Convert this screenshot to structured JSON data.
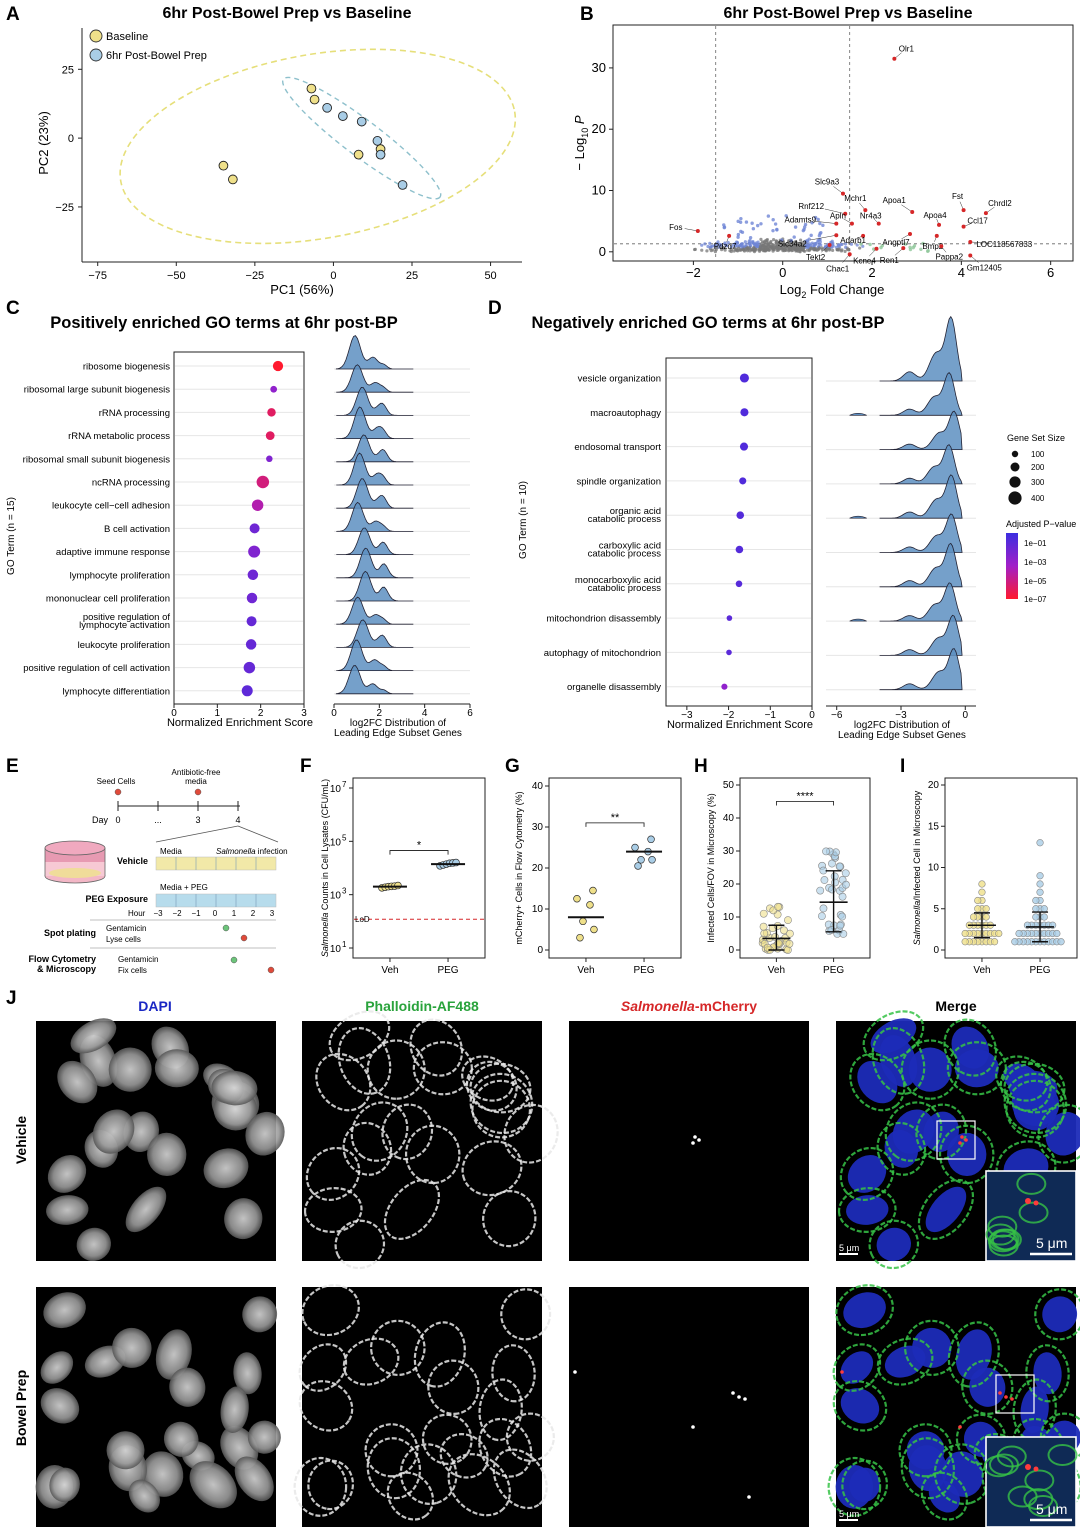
{
  "panels": {
    "A": {
      "letter": "A",
      "title": "6hr Post-Bowel Prep vs Baseline",
      "legend": [
        "Baseline",
        "6hr Post-Bowel Prep"
      ]
    },
    "B": {
      "letter": "B",
      "title": "6hr Post-Bowel Prep vs Baseline",
      "ylabel_prefix": "− Log",
      "ylabel_sub": "10",
      "ylabel_suffix": " P",
      "xlabel_prefix": "Log",
      "xlabel_sub": "2",
      "xlabel_suffix": " Fold Change"
    },
    "C": {
      "letter": "C",
      "title": "Positively enriched GO terms at 6hr post-BP",
      "ylabel": "GO Term (n = 15)",
      "xlabel": "Normalized Enrichment Score",
      "ridge_xlabel_1": "log2FC Distribution of",
      "ridge_xlabel_2": "Leading Edge Subset Genes"
    },
    "D": {
      "letter": "D",
      "title": "Negatively enriched GO terms at 6hr post-BP",
      "ylabel": "GO Term (n = 10)",
      "xlabel": "Normalized Enrichment Score",
      "ridge_xlabel_1": "log2FC Distribution of",
      "ridge_xlabel_2": "Leading Edge Subset Genes",
      "legend_size_title": "Gene Set Size",
      "legend_size_values": [
        "100",
        "200",
        "300",
        "400"
      ],
      "legend_color_title": "Adjusted P−value",
      "legend_color_values": [
        "1e−01",
        "1e−03",
        "1e−05",
        "1e−07"
      ]
    },
    "E": {
      "letter": "E",
      "seed": "Seed Cells",
      "abx_1": "Antibiotic-free",
      "abx_2": "media",
      "day_label": "Day",
      "days": [
        "0",
        "...",
        "3",
        "4"
      ],
      "vehicle_label": "Vehicle",
      "vehicle_media": "Media",
      "vehicle_infection_italic": "Salmonella",
      "vehicle_infection_rest": " infection",
      "peg_label": "PEG Exposure",
      "peg_media": "Media + PEG",
      "hour_label": "Hour",
      "hours": [
        "-3",
        "-2",
        "-1",
        "0",
        "1",
        "2",
        "3"
      ],
      "spot_label": "Spot plating",
      "spot_1": "Gentamicin",
      "spot_2": "Lyse cells",
      "flow_label_1": "Flow Cytometry",
      "flow_label_2": "& Microscopy",
      "flow_1": "Gentamicin",
      "flow_2": "Fix cells"
    },
    "F": {
      "letter": "F",
      "ylabel_italic": "Salmonella",
      "ylabel_rest": " Counts in Cell Lysates (CFU/mL)",
      "lod": "LoD",
      "sig": "*",
      "groups": [
        "Veh",
        "PEG"
      ]
    },
    "G": {
      "letter": "G",
      "ylabel": "mCherry+ Cells in Flow Cytometry (%)",
      "sig": "**",
      "groups": [
        "Veh",
        "PEG"
      ]
    },
    "H": {
      "letter": "H",
      "ylabel": "Infected Cells/FOV in Microscopy (%)",
      "sig": "****",
      "groups": [
        "Veh",
        "PEG"
      ]
    },
    "I": {
      "letter": "I",
      "ylabel_italic": "Salmonella",
      "ylabel_rest": "/Infected Cell in Microscopy",
      "groups": [
        "Veh",
        "PEG"
      ]
    },
    "J": {
      "letter": "J",
      "col_titles": [
        "DAPI",
        "Phalloidin-AF488",
        "Salmonella",
        "-mCherry",
        "Merge"
      ],
      "row_labels": [
        "Vehicle",
        "Bowel Prep"
      ],
      "scalebar_small": "5 μm",
      "scalebar_large": "5 μm"
    }
  },
  "colors": {
    "baseline": "#efe08a",
    "post_bp": "#a9cde6",
    "ridge": "#5d8fc1",
    "sig_red": "#d62728",
    "dapi_blue": "#1a27c4",
    "phalloidin_green": "#2aa33c"
  },
  "chart_data": [
    {
      "panel": "A",
      "type": "scatter",
      "title": "6hr Post-Bowel Prep vs Baseline",
      "xlabel": "PC1 (56%)",
      "ylabel": "PC2 (23%)",
      "xlim": [
        -80,
        60
      ],
      "ylim": [
        -45,
        40
      ],
      "xticks": [
        -75,
        -50,
        -25,
        0,
        25,
        50
      ],
      "yticks": [
        -25,
        0,
        25
      ],
      "series": [
        {
          "name": "Baseline",
          "points": [
            [
              -35,
              -10
            ],
            [
              -32,
              -15
            ],
            [
              -7,
              18
            ],
            [
              -6,
              14
            ],
            [
              8,
              -6
            ],
            [
              15,
              -4
            ]
          ]
        },
        {
          "name": "6hr Post-Bowel Prep",
          "points": [
            [
              -2,
              11
            ],
            [
              3,
              8
            ],
            [
              9,
              6
            ],
            [
              14,
              -1
            ],
            [
              15,
              -6
            ],
            [
              22,
              -17
            ]
          ]
        }
      ]
    },
    {
      "panel": "B",
      "type": "scatter",
      "title": "6hr Post-Bowel Prep vs Baseline",
      "xlim": [
        -3.8,
        6.5
      ],
      "ylim": [
        -1.5,
        37
      ],
      "xticks": [
        -2,
        0,
        2,
        4,
        6
      ],
      "yticks": [
        0,
        10,
        20,
        30
      ],
      "fc_cutoffs": [
        -1.5,
        1.5
      ],
      "p_cutoff": 1.3,
      "labeled_genes": [
        {
          "gene": "Olr1",
          "x": 2.5,
          "y": 31.5
        },
        {
          "gene": "Fos",
          "x": -1.9,
          "y": 3.4
        },
        {
          "gene": "Pdzd7",
          "x": -1.2,
          "y": 2.6
        },
        {
          "gene": "Slc9a3",
          "x": 1.35,
          "y": 9.5
        },
        {
          "gene": "Mchr1",
          "x": 1.85,
          "y": 6.8
        },
        {
          "gene": "Rnf212",
          "x": 1.4,
          "y": 6.2
        },
        {
          "gene": "Apoa1",
          "x": 2.9,
          "y": 6.5
        },
        {
          "gene": "Fst",
          "x": 4.05,
          "y": 6.8
        },
        {
          "gene": "Chrdl2",
          "x": 4.55,
          "y": 6.3
        },
        {
          "gene": "Adamts9",
          "x": 1.2,
          "y": 4.6
        },
        {
          "gene": "Apln",
          "x": 1.55,
          "y": 4.6
        },
        {
          "gene": "Nr4a3",
          "x": 2.15,
          "y": 4.6
        },
        {
          "gene": "Apoa4",
          "x": 3.5,
          "y": 4.4
        },
        {
          "gene": "Ccl17",
          "x": 4.05,
          "y": 4.1
        },
        {
          "gene": "Slc34a2",
          "x": 1.2,
          "y": 2.7
        },
        {
          "gene": "Adarb1",
          "x": 1.8,
          "y": 2.6
        },
        {
          "gene": "Angptl7",
          "x": 2.85,
          "y": 2.9
        },
        {
          "gene": "Bmp2",
          "x": 3.45,
          "y": 2.6
        },
        {
          "gene": "Tekt2",
          "x": 1.05,
          "y": 1.1
        },
        {
          "gene": "LOC118567833",
          "x": 4.2,
          "y": 1.6
        },
        {
          "gene": "Kcne4",
          "x": 2.1,
          "y": 0.5
        },
        {
          "gene": "Ren1",
          "x": 2.7,
          "y": 0.6
        },
        {
          "gene": "Pappa2",
          "x": 3.55,
          "y": 0.9
        },
        {
          "gene": "Chac1",
          "x": 1.5,
          "y": -0.4
        },
        {
          "gene": "Gm12405",
          "x": 4.2,
          "y": -0.6
        }
      ]
    },
    {
      "panel": "C",
      "type": "scatter",
      "title": "Positively enriched GO terms at 6hr post-BP",
      "xlabel": "Normalized Enrichment Score",
      "xlim": [
        0,
        3
      ],
      "xticks": [
        0,
        1,
        2,
        3
      ],
      "ridge_xlim": [
        0,
        6
      ],
      "ridge_xticks": [
        0,
        2,
        4,
        6
      ],
      "categories": [
        "ribosome biogenesis",
        "ribosomal large subunit biogenesis",
        "rRNA processing",
        "rRNA metabolic process",
        "ribosomal small subunit biogenesis",
        "ncRNA processing",
        "leukocyte cell−cell adhesion",
        "B cell activation",
        "adaptive immune response",
        "lymphocyte proliferation",
        "mononuclear cell proliferation",
        "positive regulation of\nlymphocyte activation",
        "leukocyte proliferation",
        "positive regulation of cell activation",
        "lymphocyte differentiation"
      ],
      "nes": [
        2.4,
        2.3,
        2.25,
        2.22,
        2.2,
        2.05,
        1.93,
        1.86,
        1.85,
        1.82,
        1.8,
        1.79,
        1.78,
        1.74,
        1.69
      ],
      "set_size": [
        210,
        70,
        140,
        150,
        60,
        300,
        260,
        200,
        280,
        220,
        220,
        200,
        220,
        260,
        240
      ],
      "padj_log10": [
        -7,
        -3.5,
        -6,
        -6,
        -3,
        -5.5,
        -4.5,
        -2.5,
        -3,
        -2.5,
        -2.5,
        -2.2,
        -2.2,
        -2.2,
        -2
      ]
    },
    {
      "panel": "D",
      "type": "scatter",
      "title": "Negatively enriched GO terms at 6hr post-BP",
      "xlabel": "Normalized Enrichment Score",
      "xlim": [
        -3.5,
        0
      ],
      "xticks": [
        -3,
        -2,
        -1,
        0
      ],
      "ridge_xlim": [
        -6.5,
        0.5
      ],
      "ridge_xticks": [
        -6,
        -3,
        0
      ],
      "categories": [
        "vesicle organization",
        "macroautophagy",
        "endosomal transport",
        "spindle organization",
        "organic acid\ncatabolic process",
        "carboxylic acid\ncatabolic process",
        "monocarboxylic acid\ncatabolic process",
        "mitochondrion disassembly",
        "autophagy of mitochondrion",
        "organelle disassembly"
      ],
      "nes": [
        -1.62,
        -1.62,
        -1.63,
        -1.66,
        -1.72,
        -1.74,
        -1.75,
        -1.98,
        -1.99,
        -2.1
      ],
      "set_size": [
        260,
        220,
        220,
        180,
        200,
        200,
        160,
        120,
        120,
        140
      ],
      "padj_log10": [
        -1.6,
        -1.6,
        -1.6,
        -1.6,
        -1.7,
        -1.7,
        -1.8,
        -1.9,
        -1.9,
        -3.5
      ]
    },
    {
      "panel": "F",
      "type": "scatter",
      "ylabel": "Salmonella Counts in Cell Lysates (CFU/mL)",
      "log_scale": true,
      "ylim": [
        10,
        10000000
      ],
      "yticks": [
        10,
        1000,
        100000,
        10000000
      ],
      "lod": 120,
      "categories": [
        "Veh",
        "PEG"
      ],
      "series": [
        {
          "name": "Veh",
          "values": [
            1800,
            1900,
            2000,
            2050,
            2100,
            2200
          ],
          "mean": 2000
        },
        {
          "name": "PEG",
          "values": [
            12000,
            13000,
            14000,
            15000,
            15500,
            16000
          ],
          "mean": 14000
        }
      ],
      "significance": "*"
    },
    {
      "panel": "G",
      "type": "scatter",
      "ylabel": "mCherry+ Cells in Flow Cytometry (%)",
      "ylim": [
        -2,
        40
      ],
      "yticks": [
        0,
        10,
        20,
        30,
        40
      ],
      "categories": [
        "Veh",
        "PEG"
      ],
      "series": [
        {
          "name": "Veh",
          "values": [
            3,
            5,
            7,
            11,
            12.5,
            14.5
          ],
          "mean": 8
        },
        {
          "name": "PEG",
          "values": [
            20.5,
            22,
            22,
            24,
            25,
            27
          ],
          "mean": 24
        }
      ],
      "significance": "**"
    },
    {
      "panel": "H",
      "type": "scatter",
      "ylabel": "Infected Cells/FOV in Microscopy (%)",
      "ylim": [
        -1,
        50
      ],
      "yticks": [
        0,
        10,
        20,
        30,
        40,
        50
      ],
      "categories": [
        "Veh",
        "PEG"
      ],
      "series": [
        {
          "name": "Veh",
          "mean": 3.5,
          "sd_low": 0,
          "sd_high": 7.5
        },
        {
          "name": "PEG",
          "mean": 14.5,
          "sd_low": 5.5,
          "sd_high": 24
        }
      ],
      "significance": "****"
    },
    {
      "panel": "I",
      "type": "scatter",
      "ylabel": "Salmonella/Infected Cell in Microscopy",
      "ylim": [
        -0.5,
        20
      ],
      "yticks": [
        0,
        5,
        10,
        15,
        20
      ],
      "categories": [
        "Veh",
        "PEG"
      ],
      "series": [
        {
          "name": "Veh",
          "mean": 3,
          "sd_low": 1.5,
          "sd_high": 4.5
        },
        {
          "name": "PEG",
          "mean": 2.8,
          "sd_low": 1,
          "sd_high": 4.6
        }
      ]
    }
  ]
}
